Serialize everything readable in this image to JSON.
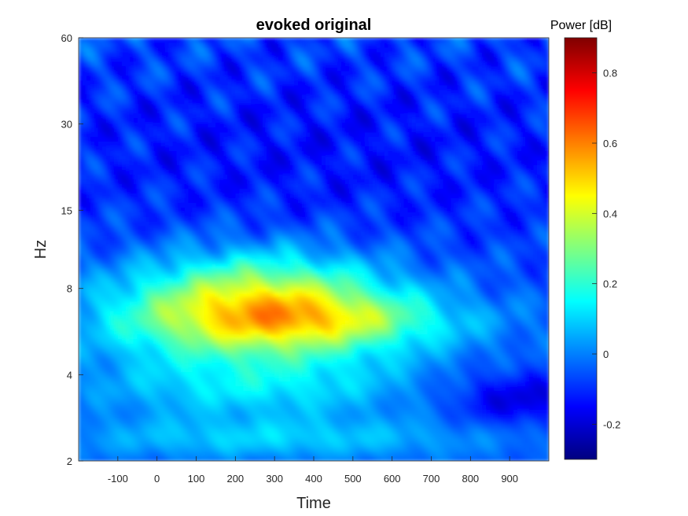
{
  "chart_data": {
    "type": "heatmap",
    "title": "evoked original",
    "xlabel": "Time",
    "ylabel": "Hz",
    "x_range": [
      -200,
      1000
    ],
    "x_ticks": [
      -100,
      0,
      100,
      200,
      300,
      400,
      500,
      600,
      700,
      800,
      900
    ],
    "y_scale": "log",
    "y_range": [
      2,
      60
    ],
    "y_ticks": [
      2,
      4,
      8,
      15,
      30,
      60
    ],
    "colorbar": {
      "title": "Power [dB]",
      "colormap": "jet",
      "range": [
        -0.3,
        0.9
      ],
      "ticks": [
        -0.2,
        0,
        0.2,
        0.4,
        0.6,
        0.8
      ]
    },
    "baseline": -0.05,
    "features": [
      {
        "t": 260,
        "f": 7.2,
        "t_width": 230,
        "f_width": 0.28,
        "amp": 0.42
      },
      {
        "t": 300,
        "f": 6.0,
        "t_width": 320,
        "f_width": 0.22,
        "amp": 0.22
      },
      {
        "t": 250,
        "f": 3.6,
        "t_width": 300,
        "f_width": 0.18,
        "amp": 0.16
      },
      {
        "t": 300,
        "f": 2.4,
        "t_width": 400,
        "f_width": 0.12,
        "amp": 0.14
      },
      {
        "t": 500,
        "f": 6.2,
        "t_width": 200,
        "f_width": 0.12,
        "amp": 0.1
      },
      {
        "t": 920,
        "f": 3.3,
        "t_width": 120,
        "f_width": 0.15,
        "amp": -0.15
      },
      {
        "t": 450,
        "f": 25,
        "t_width": 800,
        "f_width": 0.6,
        "amp": -0.08
      }
    ]
  }
}
